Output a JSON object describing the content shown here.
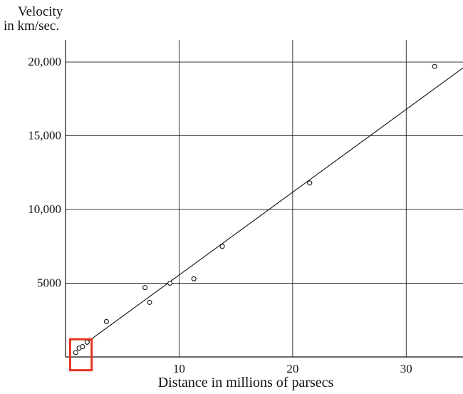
{
  "chart_data": {
    "type": "scatter",
    "title": "",
    "xlabel": "Distance in millions of parsecs",
    "ylabel_lines": [
      "Velocity",
      "in km/sec."
    ],
    "xlim": [
      0,
      35
    ],
    "ylim": [
      0,
      21500
    ],
    "x_ticks": [
      10,
      20,
      30
    ],
    "x_tick_labels": [
      "10",
      "20",
      "30"
    ],
    "y_ticks": [
      5000,
      10000,
      15000,
      20000
    ],
    "y_tick_labels": [
      "5000",
      "10,000",
      "15,000",
      "20,000"
    ],
    "grid": true,
    "series": [
      {
        "points": [
          {
            "x": 0.9,
            "y": 300
          },
          {
            "x": 1.2,
            "y": 600
          },
          {
            "x": 1.5,
            "y": 700
          },
          {
            "x": 1.9,
            "y": 1000
          },
          {
            "x": 3.6,
            "y": 2400
          },
          {
            "x": 7.0,
            "y": 4700
          },
          {
            "x": 7.4,
            "y": 3700
          },
          {
            "x": 9.2,
            "y": 5000
          },
          {
            "x": 11.3,
            "y": 5300
          },
          {
            "x": 13.8,
            "y": 7500
          },
          {
            "x": 21.5,
            "y": 11800
          },
          {
            "x": 32.5,
            "y": 19700
          }
        ]
      }
    ],
    "fit_line": {
      "x": [
        1.9,
        35
      ],
      "y": [
        1000,
        19600
      ]
    },
    "highlight_box": {
      "x_range": [
        0.4,
        2.3
      ],
      "y_range": [
        -900,
        1200
      ],
      "color": "#e53322"
    }
  }
}
